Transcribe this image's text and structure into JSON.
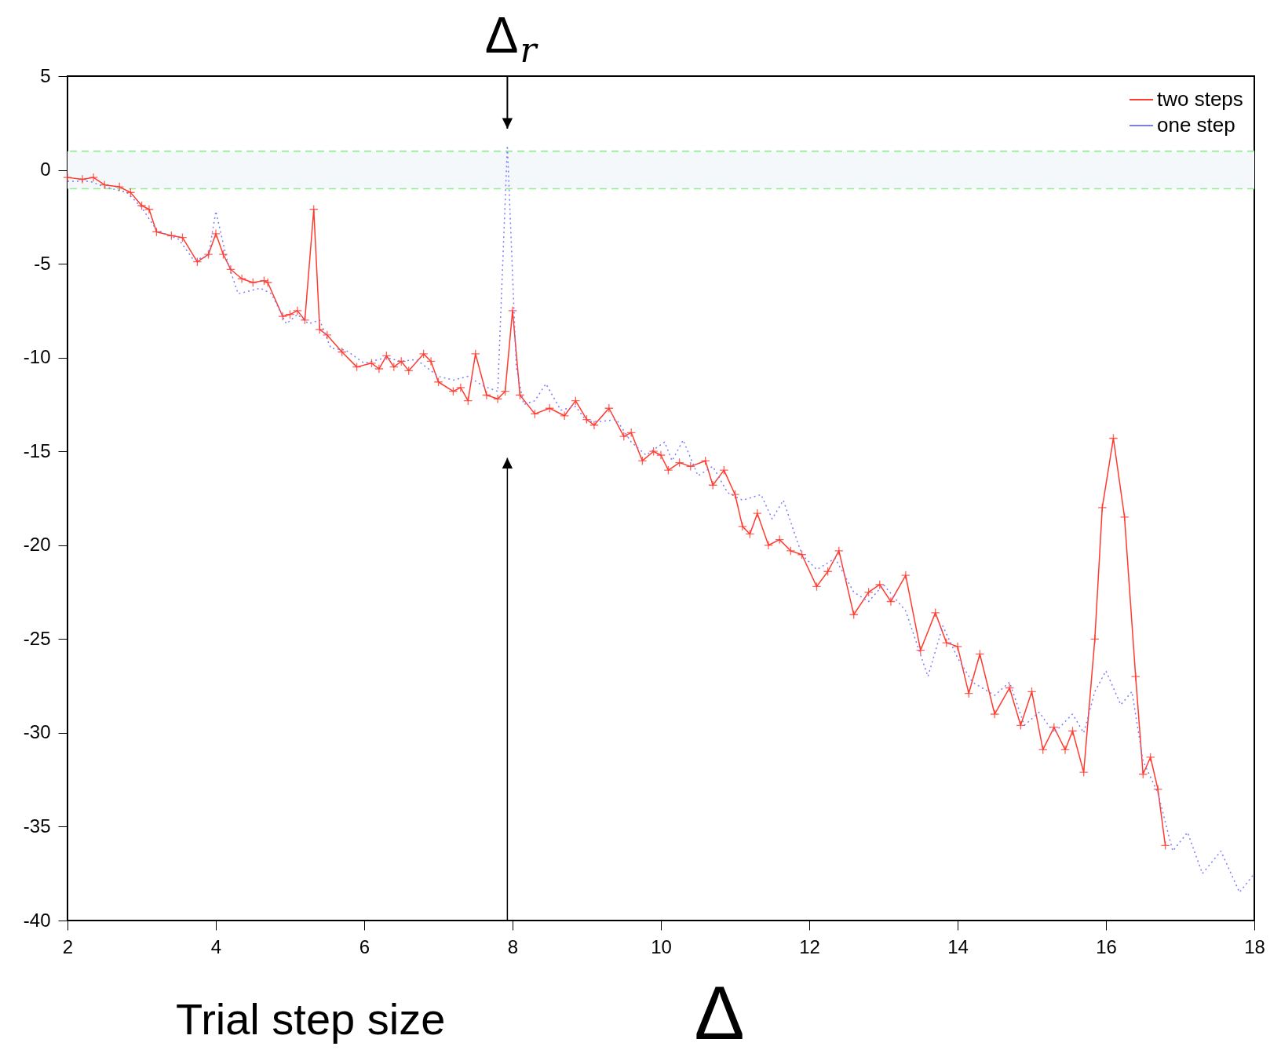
{
  "chart_data": {
    "type": "line",
    "xlabel": "Δ",
    "xlim": [
      2,
      18
    ],
    "xticks": [
      2,
      4,
      6,
      8,
      10,
      12,
      14,
      16,
      18
    ],
    "ylim": [
      -40,
      5
    ],
    "yticks": [
      -40,
      -35,
      -30,
      -25,
      -20,
      -15,
      -10,
      -5,
      0,
      5
    ],
    "grid": false,
    "legend": "top right",
    "annotations": [
      "Δ$_{r}$",
      "Trial step size"
    ],
    "bands": [
      {
        "axis": "y",
        "from": -1,
        "to": 1,
        "color": "#f4f8fa"
      }
    ],
    "ref_lines": [
      {
        "axis": "y",
        "value": 1,
        "color": "#90ee90",
        "line_style": "dashed"
      },
      {
        "axis": "y",
        "value": -1,
        "color": "#90ee90",
        "line_style": "dashed"
      }
    ],
    "series": [
      {
        "name": "two steps",
        "color": "#ff3b30",
        "marker": "cross",
        "line_style": "solid",
        "x": [
          2.0,
          2.2,
          2.35,
          2.5,
          2.7,
          2.85,
          3.0,
          3.1,
          3.2,
          3.4,
          3.55,
          3.75,
          3.9,
          4.0,
          4.1,
          4.2,
          4.35,
          4.5,
          4.65,
          4.7,
          4.9,
          5.0,
          5.1,
          5.2,
          5.32,
          5.4,
          5.5,
          5.7,
          5.9,
          6.1,
          6.2,
          6.3,
          6.4,
          6.5,
          6.6,
          6.8,
          6.9,
          7.0,
          7.2,
          7.3,
          7.4,
          7.5,
          7.65,
          7.8,
          7.9,
          8.0,
          8.1,
          8.3,
          8.5,
          8.7,
          8.85,
          9.0,
          9.1,
          9.3,
          9.5,
          9.6,
          9.75,
          9.9,
          10.0,
          10.1,
          10.25,
          10.4,
          10.6,
          10.7,
          10.85,
          11.0,
          11.1,
          11.2,
          11.3,
          11.45,
          11.6,
          11.75,
          11.9,
          12.1,
          12.25,
          12.4,
          12.6,
          12.8,
          12.95,
          13.1,
          13.3,
          13.5,
          13.7,
          13.85,
          14.0,
          14.15,
          14.3,
          14.5,
          14.7,
          14.85,
          15.0,
          15.15,
          15.3,
          15.45,
          15.55,
          15.7,
          15.85,
          15.95,
          16.1,
          16.25,
          16.4,
          16.5,
          16.6,
          16.7,
          16.8
        ],
        "values": [
          -0.4,
          -0.5,
          -0.4,
          -0.8,
          -0.9,
          -1.2,
          -1.9,
          -2.1,
          -3.3,
          -3.5,
          -3.6,
          -4.9,
          -4.5,
          -3.4,
          -4.5,
          -5.3,
          -5.8,
          -6.0,
          -5.9,
          -6.0,
          -7.8,
          -7.7,
          -7.5,
          -8.0,
          -2.1,
          -8.5,
          -8.8,
          -9.7,
          -10.5,
          -10.3,
          -10.6,
          -9.9,
          -10.5,
          -10.2,
          -10.7,
          -9.8,
          -10.2,
          -11.3,
          -11.8,
          -11.6,
          -12.3,
          -9.8,
          -12.0,
          -12.2,
          -11.8,
          -7.5,
          -12.0,
          -13.0,
          -12.7,
          -13.1,
          -12.3,
          -13.3,
          -13.6,
          -12.7,
          -14.2,
          -14.0,
          -15.5,
          -15.0,
          -15.2,
          -16.0,
          -15.6,
          -15.8,
          -15.5,
          -16.8,
          -16.0,
          -17.3,
          -19.0,
          -19.4,
          -18.3,
          -20.0,
          -19.7,
          -20.3,
          -20.5,
          -22.2,
          -21.4,
          -20.3,
          -23.7,
          -22.5,
          -22.1,
          -23.0,
          -21.6,
          -25.6,
          -23.6,
          -25.2,
          -25.4,
          -27.9,
          -25.8,
          -29.0,
          -27.6,
          -29.6,
          -27.8,
          -30.9,
          -29.7,
          -30.9,
          -29.9,
          -32.1,
          -25.0,
          -18.0,
          -14.3,
          -18.5,
          -27.0,
          -32.2,
          -31.3,
          -33.0,
          -36.0
        ]
      },
      {
        "name": "one step",
        "color": "#7b7bff",
        "line_style": "dotted",
        "x": [
          2.0,
          2.3,
          2.5,
          2.8,
          3.0,
          3.2,
          3.5,
          3.7,
          3.9,
          4.0,
          4.15,
          4.3,
          4.6,
          4.75,
          4.95,
          5.1,
          5.25,
          5.4,
          5.55,
          5.75,
          6.0,
          6.3,
          6.5,
          6.7,
          7.0,
          7.2,
          7.4,
          7.6,
          7.8,
          7.93,
          8.05,
          8.15,
          8.3,
          8.45,
          8.65,
          8.85,
          9.0,
          9.2,
          9.4,
          9.6,
          9.8,
          10.05,
          10.15,
          10.3,
          10.5,
          10.7,
          10.9,
          11.1,
          11.35,
          11.5,
          11.65,
          11.9,
          12.1,
          12.35,
          12.6,
          12.8,
          13.0,
          13.3,
          13.6,
          13.8,
          14.0,
          14.2,
          14.5,
          14.7,
          14.9,
          15.1,
          15.3,
          15.55,
          15.7,
          15.85,
          16.0,
          16.2,
          16.35,
          16.5,
          16.7,
          16.9,
          17.1,
          17.3,
          17.55,
          17.8,
          18.0
        ],
        "values": [
          -0.6,
          -0.6,
          -0.9,
          -1.2,
          -2.0,
          -3.2,
          -3.7,
          -4.8,
          -4.6,
          -2.2,
          -4.8,
          -6.6,
          -6.3,
          -6.6,
          -8.2,
          -7.7,
          -8.2,
          -8.0,
          -9.5,
          -9.6,
          -10.3,
          -10.0,
          -10.2,
          -10.1,
          -11.0,
          -11.2,
          -11.0,
          -11.5,
          -11.8,
          1.3,
          -10.5,
          -12.5,
          -12.3,
          -11.4,
          -12.8,
          -12.6,
          -13.4,
          -13.4,
          -13.3,
          -14.5,
          -15.2,
          -14.5,
          -15.5,
          -14.4,
          -16.3,
          -15.8,
          -17.2,
          -17.6,
          -17.3,
          -18.6,
          -17.6,
          -20.5,
          -21.3,
          -20.7,
          -22.5,
          -23.0,
          -22.1,
          -23.5,
          -27.0,
          -24.3,
          -26.0,
          -27.3,
          -28.0,
          -27.3,
          -29.6,
          -28.9,
          -30.0,
          -29.0,
          -30.0,
          -27.8,
          -26.7,
          -28.5,
          -27.8,
          -31.5,
          -33.2,
          -36.3,
          -35.3,
          -37.5,
          -36.3,
          -38.5,
          -37.5
        ]
      }
    ]
  }
}
